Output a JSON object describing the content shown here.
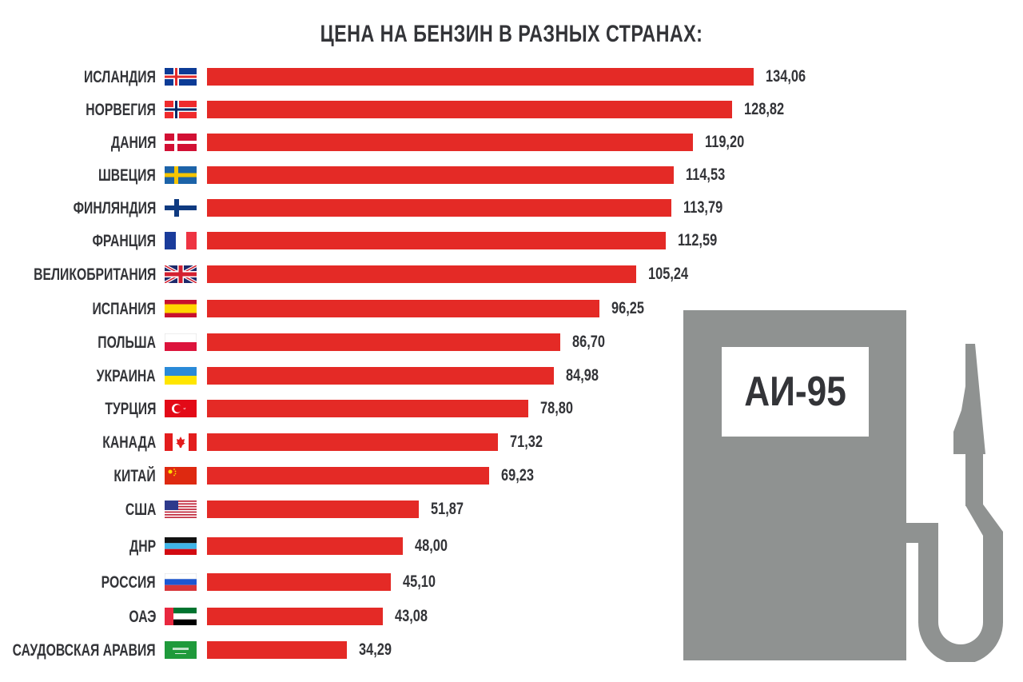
{
  "title": "ЦЕНА НА БЕНЗИН В РАЗНЫХ СТРАНАХ:",
  "pump_label": "АИ-95",
  "colors": {
    "bar": "#e42a26",
    "text": "#333438",
    "pump": "#8f9291"
  },
  "rows": [
    {
      "country": "ИСЛАНДИЯ",
      "flag": "iceland-flag",
      "value_label": "134,06"
    },
    {
      "country": "НОРВЕГИЯ",
      "flag": "norway-flag",
      "value_label": "128,82"
    },
    {
      "country": "ДАНИЯ",
      "flag": "denmark-flag",
      "value_label": "119,20"
    },
    {
      "country": "ШВЕЦИЯ",
      "flag": "sweden-flag",
      "value_label": "114,53"
    },
    {
      "country": "ФИНЛЯНДИЯ",
      "flag": "finland-flag",
      "value_label": "113,79"
    },
    {
      "country": "ФРАНЦИЯ",
      "flag": "france-flag",
      "value_label": "112,59"
    },
    {
      "country": "ВЕЛИКОБРИТАНИЯ",
      "flag": "uk-flag",
      "value_label": "105,24"
    },
    {
      "country": "ИСПАНИЯ",
      "flag": "spain-flag",
      "value_label": "96,25"
    },
    {
      "country": "ПОЛЬША",
      "flag": "poland-flag",
      "value_label": "86,70"
    },
    {
      "country": "УКРАИНА",
      "flag": "ukraine-flag",
      "value_label": "84,98"
    },
    {
      "country": "ТУРЦИЯ",
      "flag": "turkey-flag",
      "value_label": "78,80"
    },
    {
      "country": "КАНАДА",
      "flag": "canada-flag",
      "value_label": "71,32"
    },
    {
      "country": "КИТАЙ",
      "flag": "china-flag",
      "value_label": "69,23"
    },
    {
      "country": "США",
      "flag": "usa-flag",
      "value_label": "51,87"
    },
    {
      "country": "ДНР",
      "flag": "dnr-flag",
      "value_label": "48,00"
    },
    {
      "country": "РОССИЯ",
      "flag": "russia-flag",
      "value_label": "45,10"
    },
    {
      "country": "ОАЭ",
      "flag": "uae-flag",
      "value_label": "43,08"
    },
    {
      "country": "САУДОВСКАЯ АРАВИЯ",
      "flag": "saudi-arabia-flag",
      "value_label": "34,29"
    }
  ],
  "chart_data": {
    "type": "bar",
    "orientation": "horizontal",
    "title": "ЦЕНА НА БЕНЗИН В РАЗНЫХ СТРАНАХ:",
    "subtitle": "АИ-95",
    "xlabel": "",
    "ylabel": "",
    "grid": false,
    "legend": null,
    "categories": [
      "ИСЛАНДИЯ",
      "НОРВЕГИЯ",
      "ДАНИЯ",
      "ШВЕЦИЯ",
      "ФИНЛЯНДИЯ",
      "ФРАНЦИЯ",
      "ВЕЛИКОБРИТАНИЯ",
      "ИСПАНИЯ",
      "ПОЛЬША",
      "УКРАИНА",
      "ТУРЦИЯ",
      "КАНАДА",
      "КИТАЙ",
      "США",
      "ДНР",
      "РОССИЯ",
      "ОАЭ",
      "САУДОВСКАЯ АРАВИЯ"
    ],
    "values": [
      134.06,
      128.82,
      119.2,
      114.53,
      113.79,
      112.59,
      105.24,
      96.25,
      86.7,
      84.98,
      78.8,
      71.32,
      69.23,
      51.87,
      48.0,
      45.1,
      43.08,
      34.29
    ],
    "data_labels": [
      "134,06",
      "128,82",
      "119,20",
      "114,53",
      "113,79",
      "112,59",
      "105,24",
      "96,25",
      "86,70",
      "84,98",
      "78,80",
      "71,32",
      "69,23",
      "51,87",
      "48,00",
      "45,10",
      "43,08",
      "34,29"
    ],
    "bar_color": "#e42a26"
  }
}
